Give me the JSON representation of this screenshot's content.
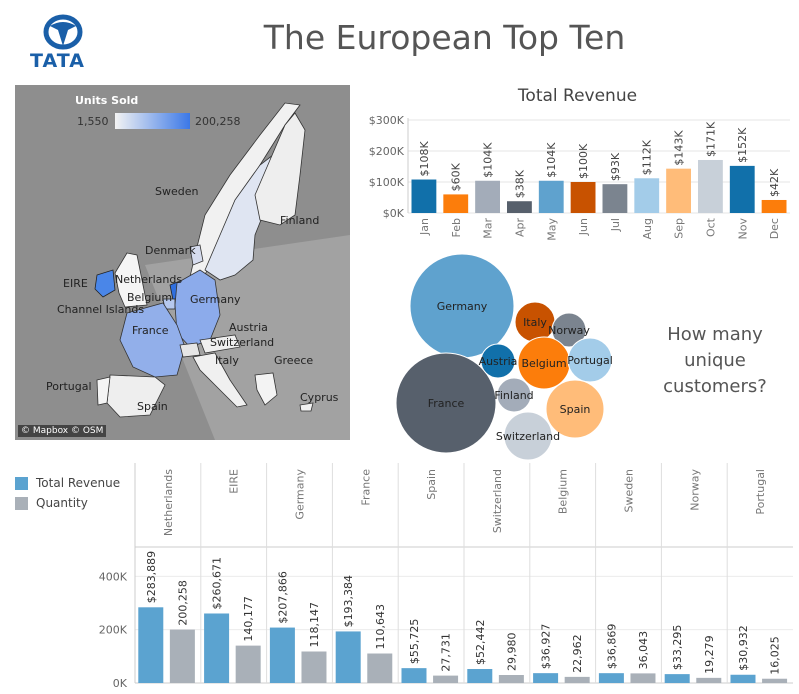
{
  "header": {
    "title": "The European Top Ten",
    "logo_text": "TATA"
  },
  "colors": {
    "revenue": "#5ba3d0",
    "quantity": "#a9b0b8",
    "map_low": "#f3f3f3",
    "map_high": "#4a86e8"
  },
  "map": {
    "legend_title": "Units Sold",
    "legend_min": "1,550",
    "legend_max": "200,258",
    "attribution": "© Mapbox © OSM",
    "labels": {
      "sweden": "Sweden",
      "finland": "Finland",
      "denmark": "Denmark",
      "eire": "EIRE",
      "netherlands": "Netherlands",
      "belgium": "Belgium",
      "germany": "Germany",
      "channel": "Channel Islands",
      "france": "France",
      "austria": "Austria",
      "switzerland": "Switzerland",
      "italy": "Italy",
      "greece": "Greece",
      "portugal": "Portugal",
      "spain": "Spain",
      "cyprus": "Cyprus"
    }
  },
  "bubble": {
    "question": "How many unique customers?"
  },
  "chart_data": [
    {
      "type": "bar",
      "title": "Total Revenue",
      "categories": [
        "Jan",
        "Feb",
        "Mar",
        "Apr",
        "May",
        "Jun",
        "Jul",
        "Aug",
        "Sep",
        "Oct",
        "Nov",
        "Dec"
      ],
      "values": [
        108000,
        60000,
        104000,
        38000,
        104000,
        100000,
        93000,
        112000,
        143000,
        171000,
        152000,
        42000
      ],
      "value_labels": [
        "$108K",
        "$60K",
        "$104K",
        "$38K",
        "$104K",
        "$100K",
        "$93K",
        "$112K",
        "$143K",
        "$171K",
        "$152K",
        "$42K"
      ],
      "colors": [
        "#1170aa",
        "#fc7d0b",
        "#a3acb9",
        "#57606c",
        "#5fa2ce",
        "#c85200",
        "#7b848f",
        "#a3cce9",
        "#ffbc79",
        "#c8d0d9",
        "#1170aa",
        "#fc7d0b"
      ],
      "ytick_labels": [
        "$0K",
        "$100K",
        "$200K",
        "$300K"
      ],
      "yticks": [
        0,
        100000,
        200000,
        300000
      ],
      "ylim": [
        0,
        300000
      ],
      "grid": true
    },
    {
      "type": "bubble",
      "categories": [
        "Germany",
        "France",
        "Italy",
        "Norway",
        "Belgium",
        "Portugal",
        "Austria",
        "Finland",
        "Spain",
        "Switzerland"
      ],
      "sizes": [
        52,
        50,
        20,
        17,
        26,
        22,
        17,
        17,
        29,
        24
      ],
      "colors": [
        "#5fa2ce",
        "#57606c",
        "#c85200",
        "#7b848f",
        "#fc7d0b",
        "#a3cce9",
        "#1170aa",
        "#a3acb9",
        "#ffbc79",
        "#c8d0d9"
      ]
    },
    {
      "type": "bar",
      "categories": [
        "Netherlands",
        "EIRE",
        "Germany",
        "France",
        "Spain",
        "Switzerland",
        "Belgium",
        "Sweden",
        "Norway",
        "Portugal"
      ],
      "series": [
        {
          "name": "Total Revenue",
          "values": [
            283889,
            260671,
            207866,
            193384,
            55725,
            52442,
            36927,
            36869,
            33295,
            30932
          ],
          "labels": [
            "$283,889",
            "$260,671",
            "$207,866",
            "$193,384",
            "$55,725",
            "$52,442",
            "$36,927",
            "$36,869",
            "$33,295",
            "$30,932"
          ]
        },
        {
          "name": "Quantity",
          "values": [
            200258,
            140177,
            118147,
            110643,
            27731,
            29980,
            22962,
            36043,
            19279,
            16025
          ],
          "labels": [
            "200,258",
            "140,177",
            "118,147",
            "110,643",
            "27,731",
            "29,980",
            "22,962",
            "36,043",
            "19,279",
            "16,025"
          ]
        }
      ],
      "ytick_labels": [
        "0K",
        "200K",
        "400K"
      ],
      "yticks": [
        0,
        200000,
        400000
      ],
      "ylim": [
        0,
        480000
      ],
      "grid": true
    }
  ]
}
